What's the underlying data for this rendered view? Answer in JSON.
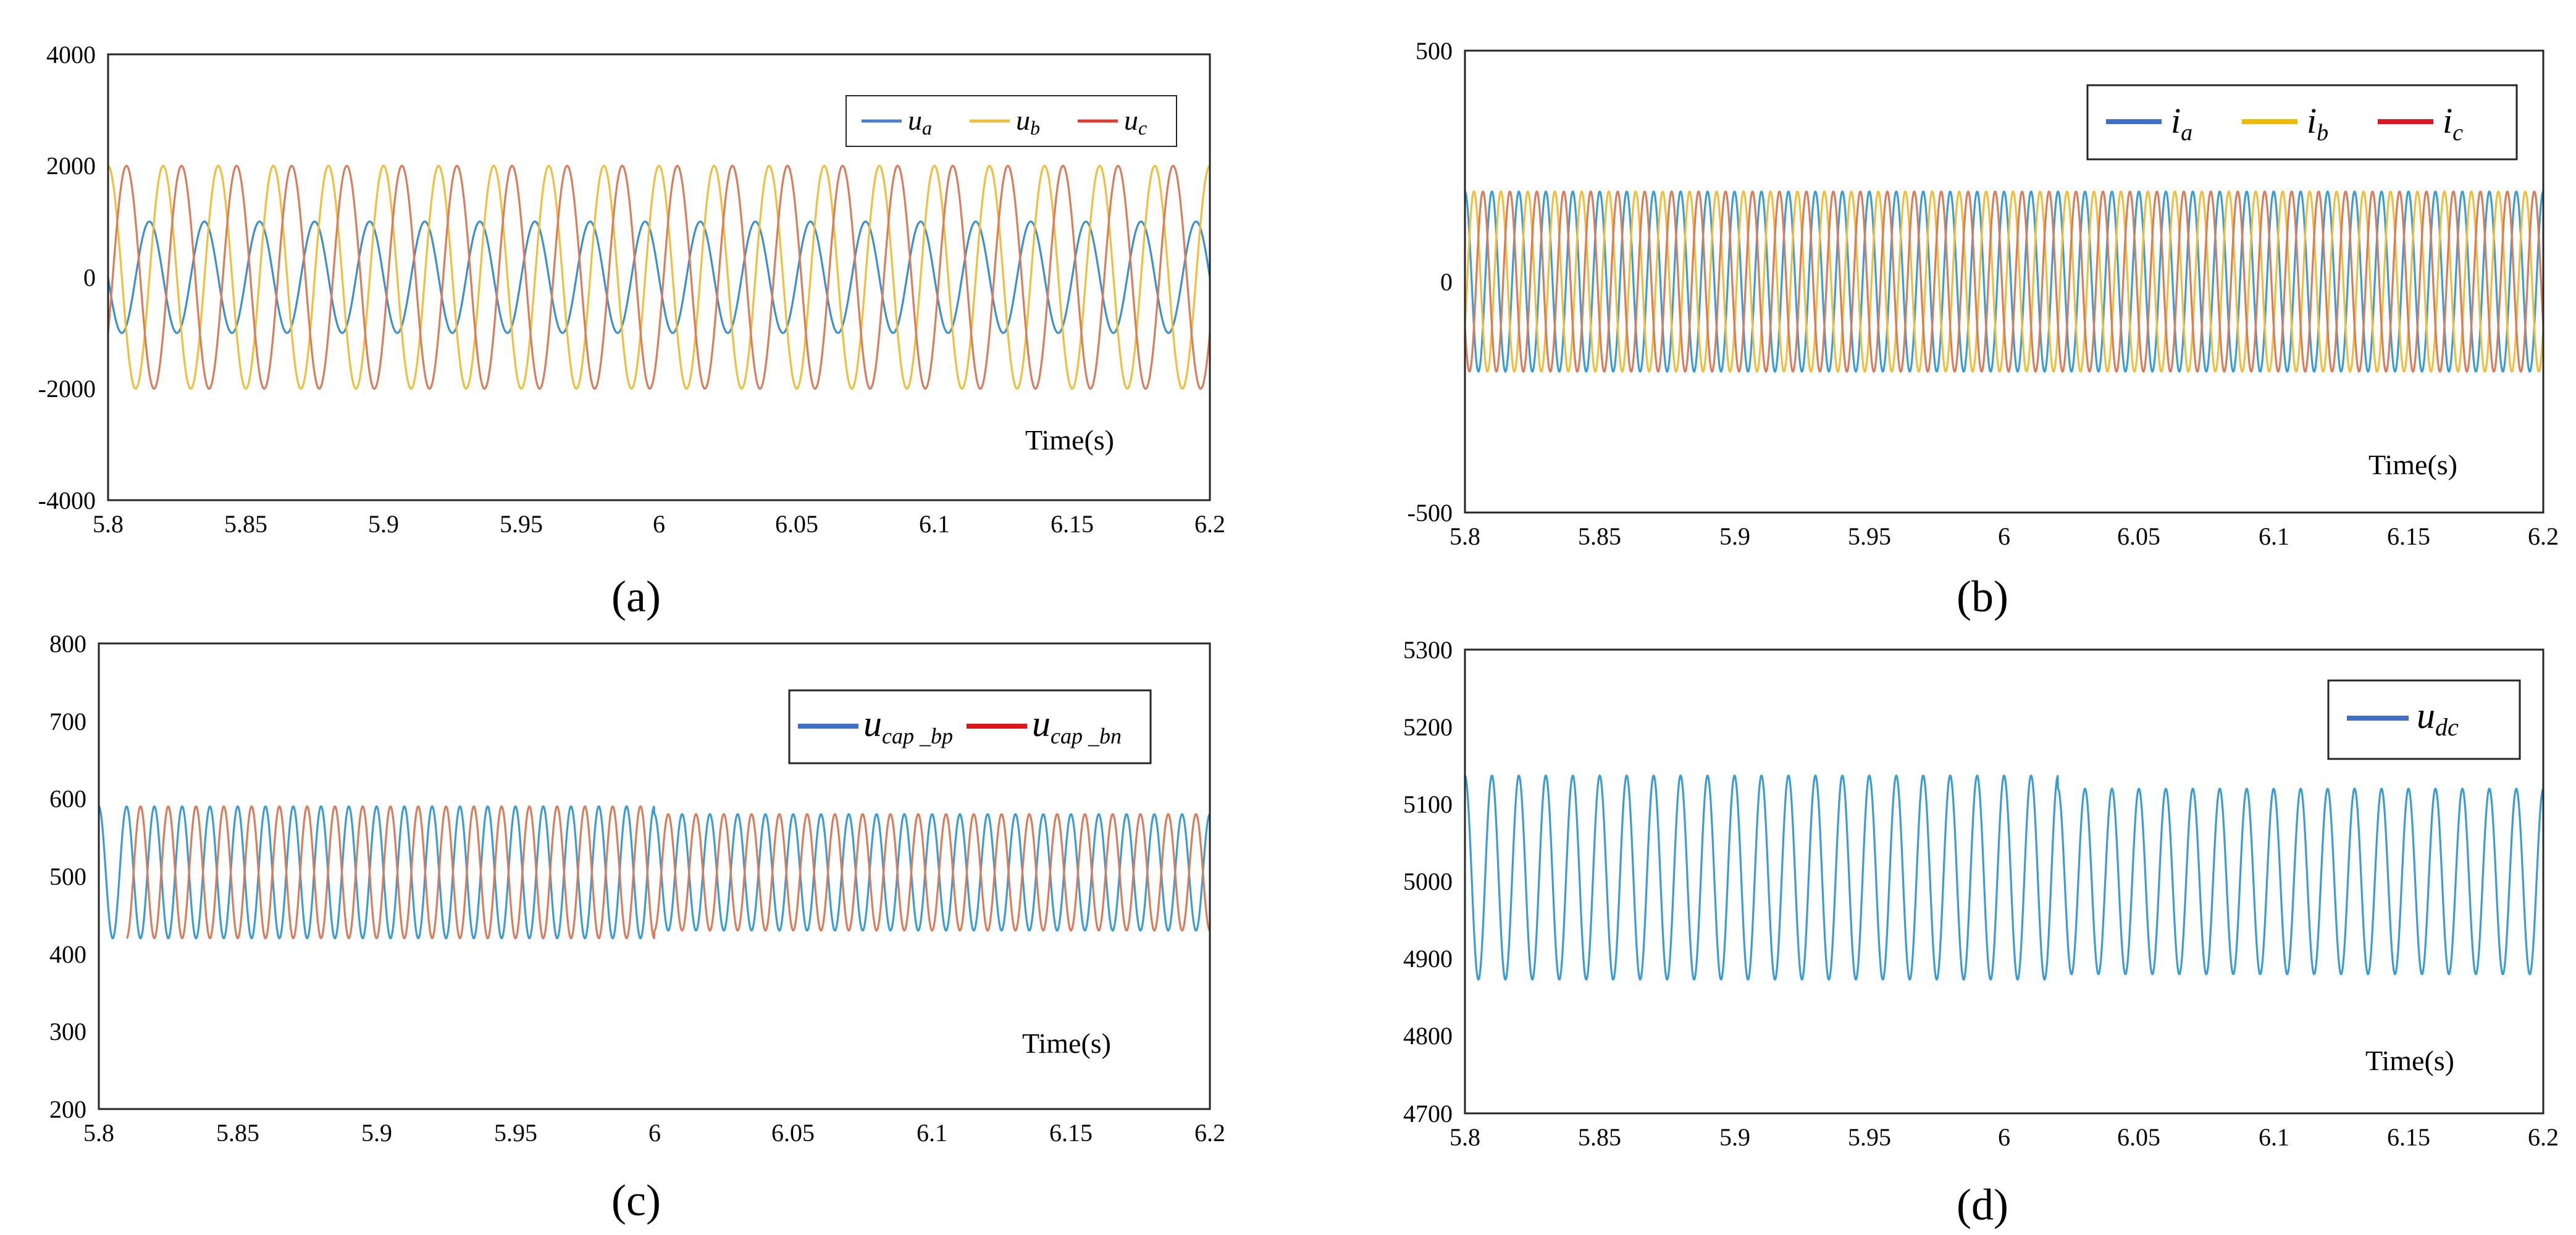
{
  "chart_data": [
    {
      "type": "line",
      "panel_label": "(a)",
      "caption": "(a)",
      "time_label": "Time(s)",
      "xlim": [
        5.8,
        6.2
      ],
      "ylim": [
        -4000,
        4000
      ],
      "xticks": [
        "5.8",
        "5.85",
        "5.9",
        "5.95",
        "6",
        "6.05",
        "6.1",
        "6.15",
        "6.2"
      ],
      "yticks": [
        "4000",
        "2000",
        "0",
        "-2000",
        "-4000"
      ],
      "legend_position": "top-right",
      "legend": [
        {
          "main": "u",
          "sub": "a"
        },
        {
          "main": "u",
          "sub": "b"
        },
        {
          "main": "u",
          "sub": "c"
        }
      ],
      "series": [
        {
          "name": "u_a",
          "color": "#3b8fd0",
          "legend_color": "#4b7ccc",
          "amplitude": 1000,
          "offset": 0,
          "frequency_hz": 50,
          "phase_deg": 180,
          "t_range": [
            5.8,
            6.2
          ]
        },
        {
          "name": "u_b",
          "color": "#efbe3c",
          "legend_color": "#efbe3c",
          "amplitude": 2000,
          "offset": 0,
          "frequency_hz": 50,
          "phase_deg": 90,
          "t_range": [
            5.8,
            6.2
          ]
        },
        {
          "name": "u_c",
          "color": "#d87c5c",
          "legend_color": "#e23a2a",
          "amplitude": 2000,
          "offset": 0,
          "frequency_hz": 50,
          "phase_deg": -30,
          "t_range": [
            5.8,
            6.2
          ]
        }
      ]
    },
    {
      "type": "line",
      "panel_label": "(b)",
      "caption": "(b)",
      "time_label": "Time(s)",
      "xlim": [
        5.8,
        6.2
      ],
      "ylim": [
        -500,
        500
      ],
      "xticks": [
        "5.8",
        "5.85",
        "5.9",
        "5.95",
        "6",
        "6.05",
        "6.1",
        "6.15",
        "6.2"
      ],
      "yticks": [
        "500",
        "0",
        "-500"
      ],
      "legend_position": "top-right",
      "legend": [
        {
          "main": "i",
          "sub": "a"
        },
        {
          "main": "i",
          "sub": "b"
        },
        {
          "main": "i",
          "sub": "c"
        }
      ],
      "series": [
        {
          "name": "i_a",
          "color": "#3b9bd4",
          "legend_color": "#3f6fc6",
          "amplitude": 195,
          "offset": 0,
          "frequency_hz": 100,
          "phase_deg": 90,
          "t_range": [
            5.8,
            6.2
          ]
        },
        {
          "name": "i_b",
          "color": "#efbe3c",
          "legend_color": "#f1b800",
          "amplitude": 195,
          "offset": 0,
          "frequency_hz": 100,
          "phase_deg": -30,
          "t_range": [
            5.8,
            6.2
          ]
        },
        {
          "name": "i_c",
          "color": "#d87c5c",
          "legend_color": "#e0161e",
          "amplitude": 195,
          "offset": 0,
          "frequency_hz": 100,
          "phase_deg": 210,
          "t_range": [
            5.8,
            6.2
          ]
        }
      ]
    },
    {
      "type": "line",
      "panel_label": "(c)",
      "caption": "(c)",
      "time_label": "Time(s)",
      "xlim": [
        5.8,
        6.2
      ],
      "ylim": [
        200,
        800
      ],
      "xticks": [
        "5.8",
        "5.85",
        "5.9",
        "5.95",
        "6",
        "6.05",
        "6.1",
        "6.15",
        "6.2"
      ],
      "yticks": [
        "800",
        "700",
        "600",
        "500",
        "400",
        "300",
        "200"
      ],
      "legend_position": "top-right",
      "legend": [
        {
          "main": "u",
          "sub": "cap _bp"
        },
        {
          "main": "u",
          "sub": "cap _bn"
        }
      ],
      "series": [
        {
          "name": "u_cap_bp",
          "color": "#3b9bd4",
          "legend_color": "#3f6fc6",
          "amplitude": 85,
          "amplitude_after": 75,
          "change_time": 6.0,
          "offset": 505,
          "offset_after": 505,
          "frequency_hz": 100,
          "phase_deg": 90,
          "t_range": [
            5.8,
            6.2
          ]
        },
        {
          "name": "u_cap_bn",
          "color": "#d87c5c",
          "legend_color": "#e0161e",
          "amplitude": 85,
          "amplitude_after": 75,
          "change_time": 6.0,
          "offset": 505,
          "offset_after": 505,
          "frequency_hz": 100,
          "phase_deg": -90,
          "t_range": [
            5.81,
            6.2
          ]
        }
      ]
    },
    {
      "type": "line",
      "panel_label": "(d)",
      "caption": "(d)",
      "time_label": "Time(s)",
      "xlim": [
        5.8,
        6.2
      ],
      "ylim": [
        4700,
        5300
      ],
      "xticks": [
        "5.8",
        "5.85",
        "5.9",
        "5.95",
        "6",
        "6.05",
        "6.1",
        "6.15",
        "6.2"
      ],
      "yticks": [
        "5300",
        "5200",
        "5100",
        "5000",
        "4900",
        "4800",
        "4700"
      ],
      "legend_position": "top-right",
      "legend": [
        {
          "main": "u",
          "sub": "dc"
        }
      ],
      "series": [
        {
          "name": "u_dc",
          "color": "#3b9bd4",
          "legend_color": "#3f6fc6",
          "amplitude": 132,
          "amplitude_after": 120,
          "change_time": 6.02,
          "offset": 5005,
          "offset_after": 5000,
          "frequency_hz": 100,
          "phase_deg": 90,
          "t_range": [
            5.8,
            6.2
          ]
        }
      ]
    }
  ]
}
